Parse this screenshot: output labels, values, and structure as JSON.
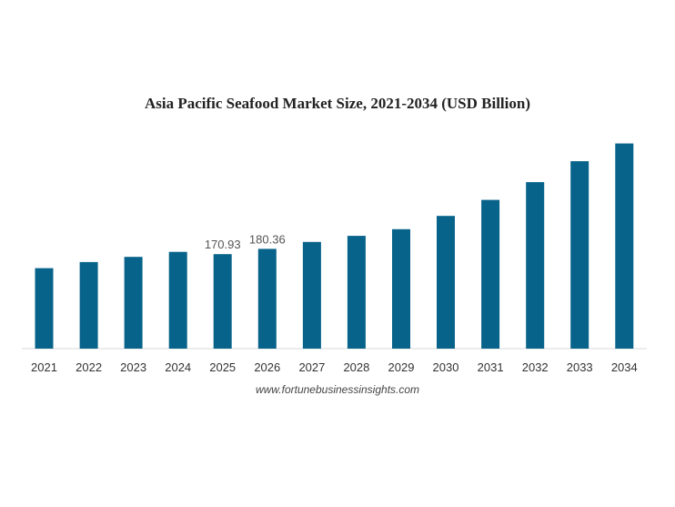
{
  "chart_data": {
    "type": "bar",
    "title": "Asia Pacific Seafood Market Size, 2021-2034 (USD Billion)",
    "xlabel": "",
    "ylabel": "",
    "categories": [
      "2021",
      "2022",
      "2023",
      "2024",
      "2025",
      "2026",
      "2027",
      "2028",
      "2029",
      "2030",
      "2031",
      "2032",
      "2033",
      "2034"
    ],
    "values": [
      145.5,
      156.5,
      166.0,
      175.0,
      170.93,
      180.36,
      193.0,
      204.0,
      216.0,
      240.0,
      269.0,
      301.0,
      339.0,
      371.0
    ],
    "data_labels": [
      "",
      "",
      "",
      "",
      "170.93",
      "180.36",
      "",
      "",
      "",
      "",
      "",
      "",
      "",
      ""
    ],
    "ylim": [
      0,
      400
    ],
    "grid": false,
    "legend": "none",
    "bar_color": "#08638a"
  },
  "source": "www.fortunebusinessinsights.com"
}
